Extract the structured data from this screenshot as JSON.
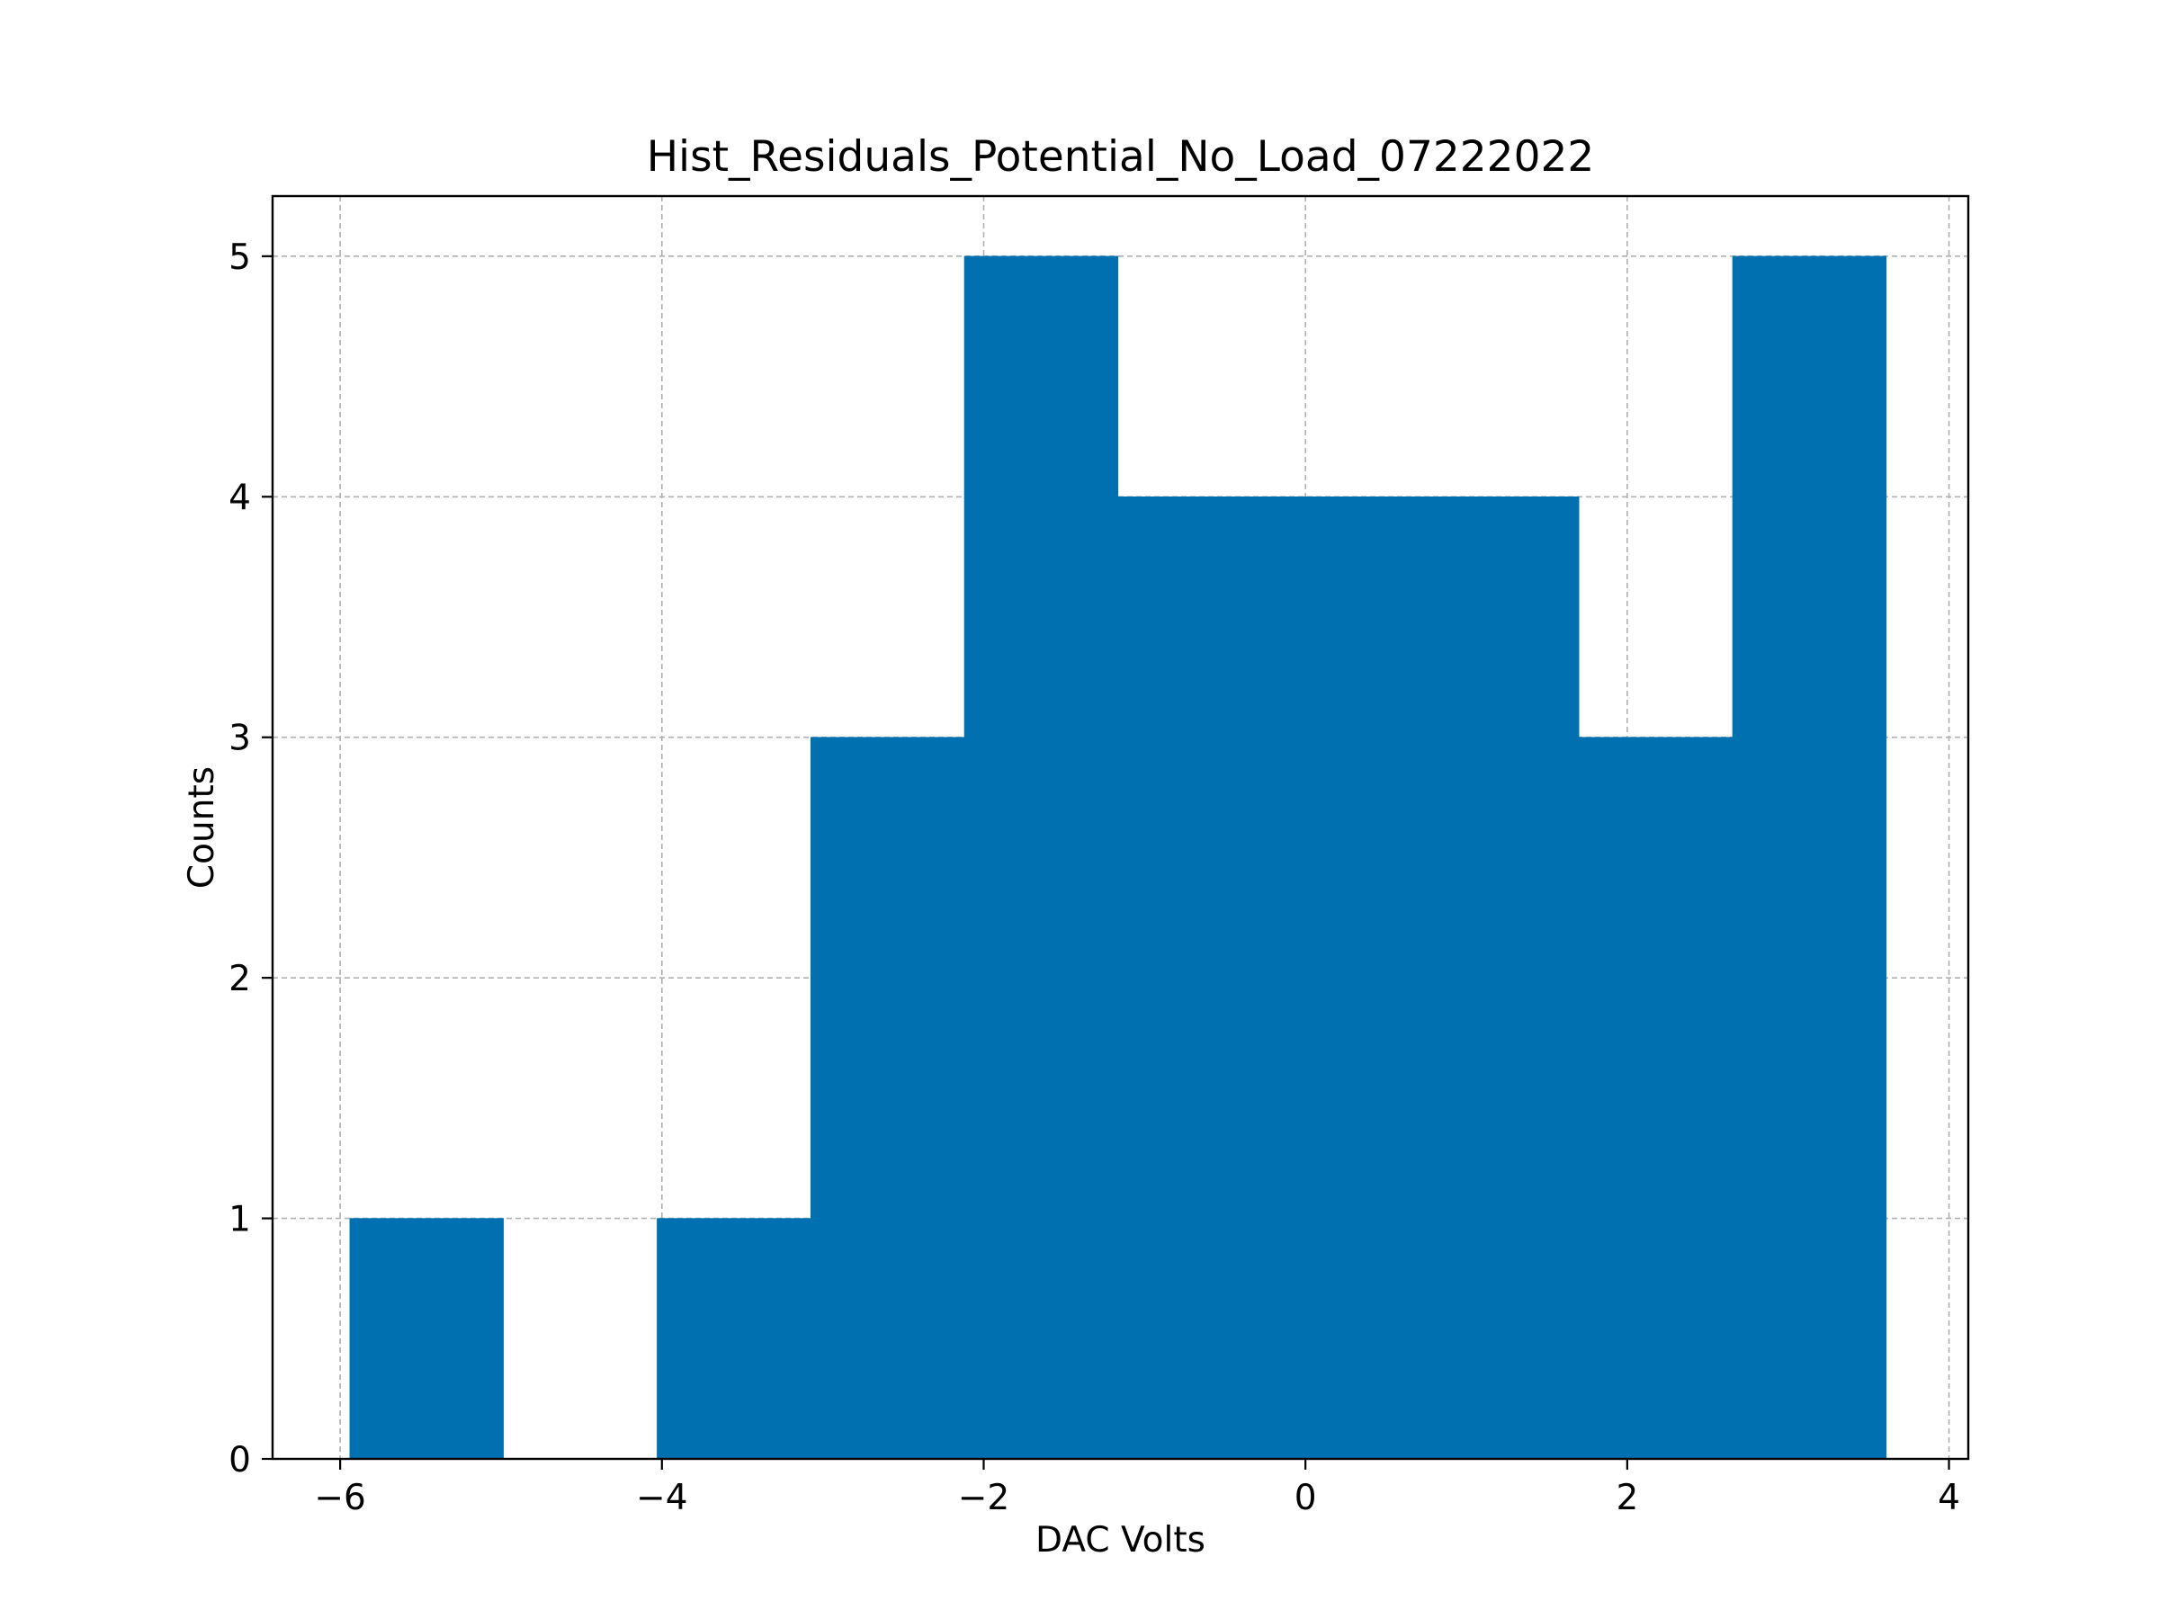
{
  "chart_data": {
    "type": "bar",
    "subtype": "histogram",
    "title": "Hist_Residuals_Potential_No_Load_07222022",
    "xlabel": "DAC Volts",
    "ylabel": "Counts",
    "xlim": [
      -6.42,
      4.12
    ],
    "ylim": [
      0,
      5.25
    ],
    "xticks": [
      -6,
      -4,
      -2,
      0,
      2,
      4
    ],
    "xtick_labels": [
      "−6",
      "−4",
      "−2",
      "0",
      "2",
      "4"
    ],
    "yticks": [
      0,
      1,
      2,
      3,
      4,
      5
    ],
    "ytick_labels": [
      "0",
      "1",
      "2",
      "3",
      "4",
      "5"
    ],
    "grid": true,
    "bar_color": "#0070b0",
    "bin_edges": [
      -5.94,
      -4.985,
      -4.03,
      -3.075,
      -2.12,
      -1.165,
      -0.21,
      0.745,
      1.7,
      2.655,
      3.61
    ],
    "counts": [
      1,
      0,
      1,
      3,
      5,
      4,
      4,
      4,
      3,
      5
    ]
  }
}
